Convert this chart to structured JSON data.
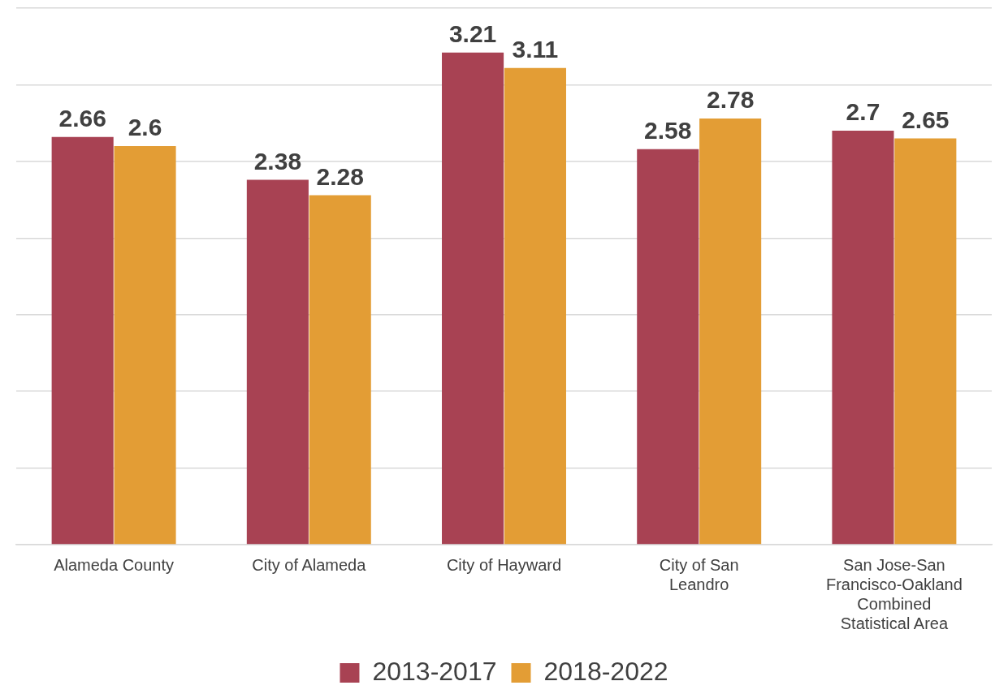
{
  "chart_data": {
    "type": "bar",
    "categories": [
      "Alameda County",
      "City of Alameda",
      "City of Hayward",
      "City of San Leandro",
      "San Jose-San Francisco-Oakland Combined Statistical Area"
    ],
    "series": [
      {
        "name": "2013-2017",
        "color": "#a84253",
        "values": [
          2.66,
          2.38,
          3.21,
          2.58,
          2.7
        ]
      },
      {
        "name": "2018-2022",
        "color": "#e39d35",
        "values": [
          2.6,
          2.28,
          3.11,
          2.78,
          2.65
        ]
      }
    ],
    "ylim": [
      0,
      3.5
    ],
    "yticks": [
      {
        "value": 0,
        "label": null
      },
      {
        "value": 0.5,
        "label": null
      },
      {
        "value": 1,
        "label": null
      },
      {
        "value": 1.5,
        "label": null
      },
      {
        "value": 2,
        "label": null
      },
      {
        "value": 2.5,
        "label": null
      },
      {
        "value": 3,
        "label": null
      },
      {
        "value": 3.5,
        "label": null
      }
    ],
    "tick_labels": "x",
    "grid": "y",
    "legend": "bottom",
    "data_labels": true
  }
}
